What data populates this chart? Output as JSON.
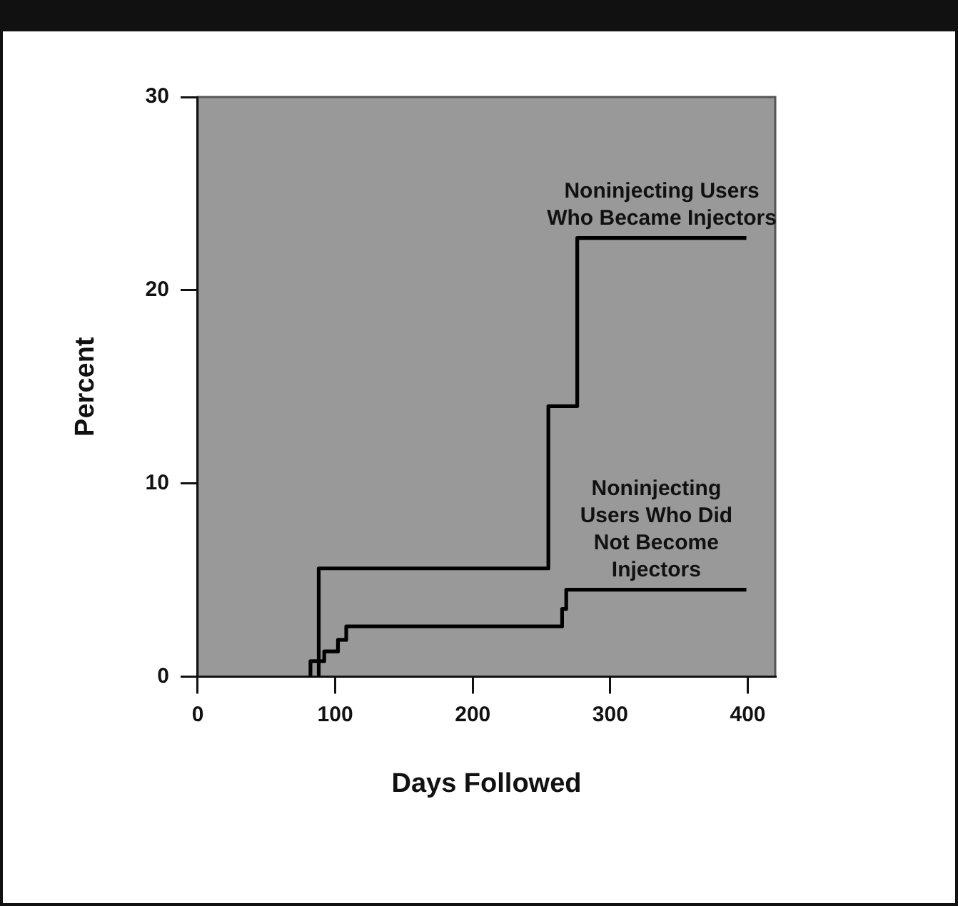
{
  "chart_data": {
    "type": "step",
    "xlabel": "Days Followed",
    "ylabel": "Percent",
    "xlim": [
      0,
      420
    ],
    "ylim": [
      0,
      30
    ],
    "xticks": [
      0,
      100,
      200,
      300,
      400
    ],
    "yticks": [
      0,
      10,
      20,
      30
    ],
    "grid": false,
    "legend": false,
    "marker": "none",
    "line_style": "solid",
    "series": [
      {
        "name": "Noninjecting Users Who Became Injectors",
        "color": "#000000",
        "x": [
          88,
          88,
          255,
          276,
          399
        ],
        "values": [
          0,
          5.6,
          14,
          22.7,
          22.7
        ]
      },
      {
        "name": "Noninjecting Users Who Did Not Become Injectors",
        "color": "#000000",
        "x": [
          82,
          82,
          92,
          102,
          108,
          265,
          268,
          399
        ],
        "values": [
          0,
          0.8,
          1.3,
          1.9,
          2.6,
          3.5,
          4.5,
          4.5
        ]
      }
    ]
  }
}
